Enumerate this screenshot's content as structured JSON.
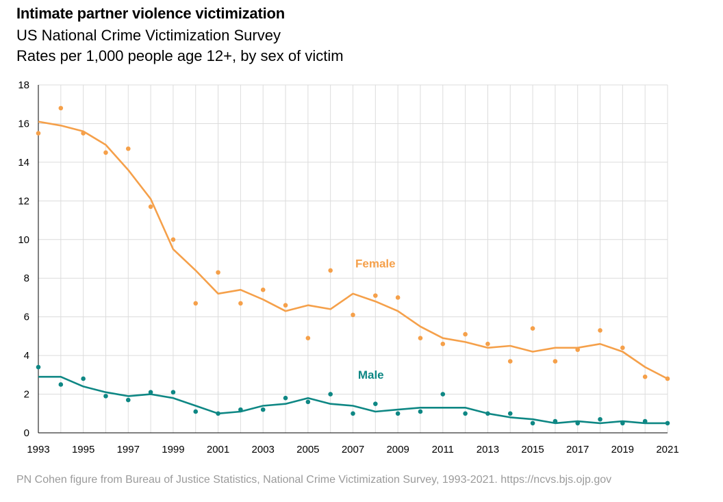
{
  "title": "Intimate partner violence victimization",
  "subtitle1": "US National Crime Victimization Survey",
  "subtitle2": "Rates per 1,000 people age 12+, by sex of victim",
  "source": "PN Cohen figure from Bureau of Justice Statistics, National Crime Victimization Survey, 1993-2021. https://ncvs.bjs.ojp.gov",
  "chart_data": {
    "type": "scatter",
    "title": "Intimate partner violence victimization",
    "subtitle": "US National Crime Victimization Survey; Rates per 1,000 people age 12+, by sex of victim",
    "xlabel": "",
    "ylabel": "",
    "xlim": [
      1993,
      2021
    ],
    "ylim": [
      0,
      18
    ],
    "grid": true,
    "x_ticks": [
      "1993",
      "1995",
      "1997",
      "1999",
      "2001",
      "2003",
      "2005",
      "2007",
      "2009",
      "2011",
      "2013",
      "2015",
      "2017",
      "2019",
      "2021"
    ],
    "y_ticks": [
      "0",
      "2",
      "4",
      "6",
      "8",
      "10",
      "12",
      "14",
      "16",
      "18"
    ],
    "x": [
      1993,
      1994,
      1995,
      1996,
      1997,
      1998,
      1999,
      2000,
      2001,
      2002,
      2003,
      2004,
      2005,
      2006,
      2007,
      2008,
      2009,
      2010,
      2011,
      2012,
      2013,
      2014,
      2015,
      2016,
      2017,
      2018,
      2019,
      2020,
      2021
    ],
    "series": [
      {
        "name": "Female",
        "color": "#f5a04a",
        "points": [
          15.5,
          16.8,
          15.5,
          14.5,
          14.7,
          11.7,
          10.0,
          6.7,
          8.3,
          6.7,
          7.4,
          6.6,
          4.9,
          8.4,
          6.1,
          7.1,
          7.0,
          4.9,
          4.6,
          5.1,
          4.6,
          3.7,
          5.4,
          3.7,
          4.3,
          5.3,
          4.4,
          2.9,
          2.8
        ],
        "trend": [
          16.1,
          15.9,
          15.6,
          14.9,
          13.6,
          12.1,
          9.5,
          8.4,
          7.2,
          7.4,
          6.9,
          6.3,
          6.6,
          6.4,
          7.2,
          6.8,
          6.3,
          5.5,
          4.9,
          4.7,
          4.4,
          4.5,
          4.2,
          4.4,
          4.4,
          4.6,
          4.2,
          3.4,
          2.8
        ]
      },
      {
        "name": "Male",
        "color": "#0e8784",
        "points": [
          3.4,
          2.5,
          2.8,
          1.9,
          1.7,
          2.1,
          2.1,
          1.1,
          1.0,
          1.2,
          1.2,
          1.8,
          1.6,
          2.0,
          1.0,
          1.5,
          1.0,
          1.1,
          2.0,
          1.0,
          1.0,
          1.0,
          0.5,
          0.6,
          0.5,
          0.7,
          0.5,
          0.6,
          0.5
        ],
        "trend": [
          2.9,
          2.9,
          2.4,
          2.1,
          1.9,
          2.0,
          1.8,
          1.4,
          1.0,
          1.1,
          1.4,
          1.5,
          1.8,
          1.5,
          1.4,
          1.1,
          1.2,
          1.3,
          1.3,
          1.3,
          1.0,
          0.8,
          0.7,
          0.5,
          0.6,
          0.5,
          0.6,
          0.5,
          0.5
        ]
      }
    ]
  }
}
